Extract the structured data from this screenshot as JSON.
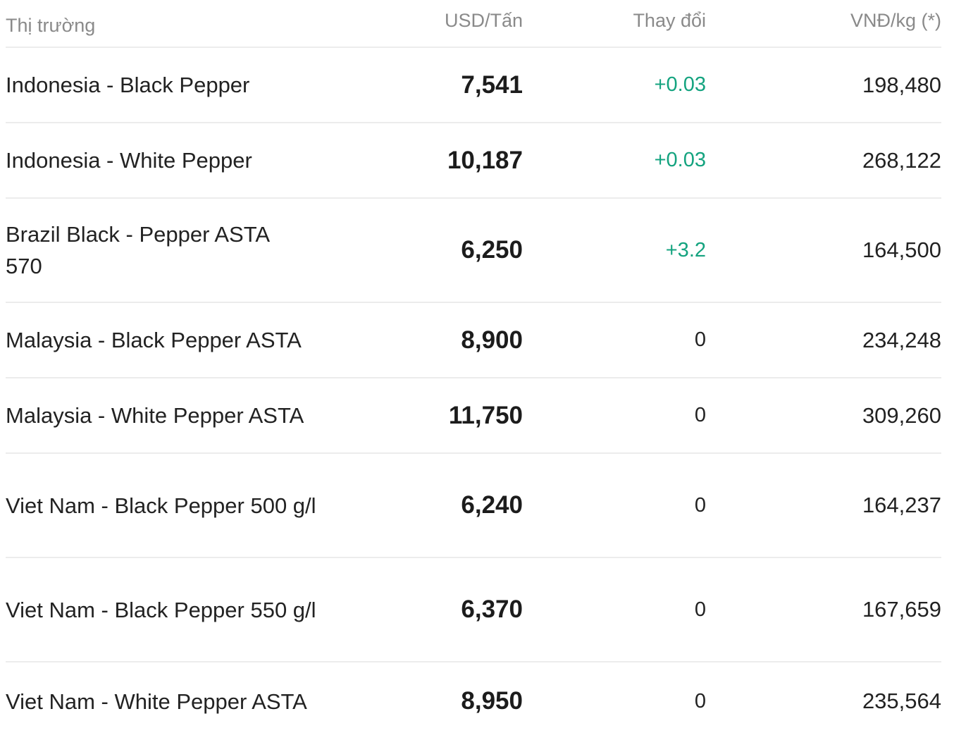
{
  "header": {
    "market": "Thị trường",
    "usd": "USD/Tấn",
    "change": "Thay đổi",
    "vnd": "VNĐ/kg (*)"
  },
  "rows": [
    {
      "market": "Indonesia - Black Pepper",
      "usd": "7,541",
      "change": "+0.03",
      "vnd": "198,480"
    },
    {
      "market": "Indonesia - White Pepper",
      "usd": "10,187",
      "change": "+0.03",
      "vnd": "268,122"
    },
    {
      "market": "Brazil Black - Pepper ASTA 570",
      "usd": "6,250",
      "change": "+3.2",
      "vnd": "164,500"
    },
    {
      "market": "Malaysia - Black Pepper ASTA",
      "usd": "8,900",
      "change": "0",
      "vnd": "234,248"
    },
    {
      "market": "Malaysia - White Pepper ASTA",
      "usd": "11,750",
      "change": "0",
      "vnd": "309,260"
    },
    {
      "market": "Viet Nam - Black Pepper 500 g/l",
      "usd": "6,240",
      "change": "0",
      "vnd": "164,237"
    },
    {
      "market": "Viet Nam - Black Pepper 550 g/l",
      "usd": "6,370",
      "change": "0",
      "vnd": "167,659"
    },
    {
      "market": "Viet Nam - White Pepper ASTA",
      "usd": "8,950",
      "change": "0",
      "vnd": "235,564"
    }
  ],
  "colors": {
    "positive_change": "#14a37f",
    "header_text": "#8a8a8a",
    "divider": "#ececec"
  }
}
